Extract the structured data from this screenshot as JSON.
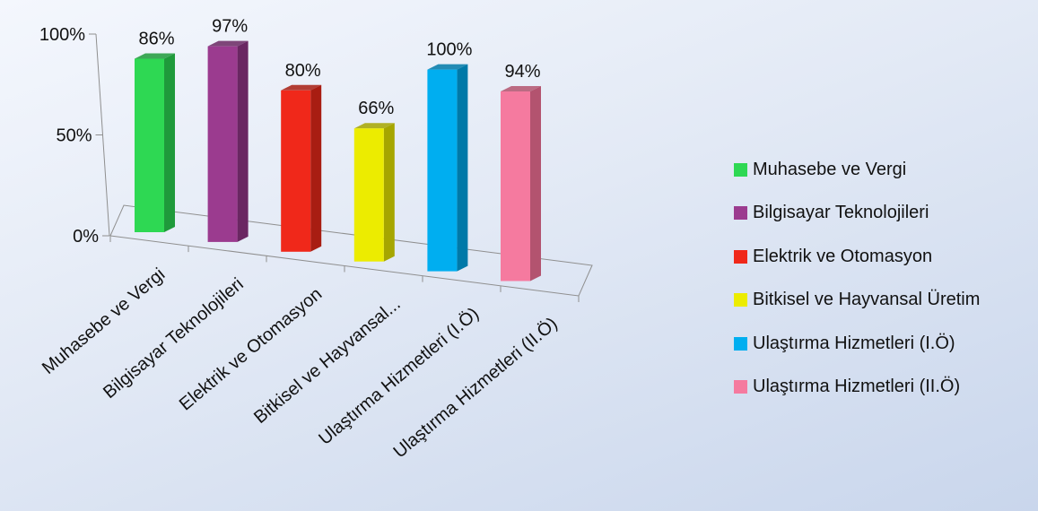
{
  "chart_data": {
    "type": "bar",
    "style": "3d-column",
    "categories": [
      "Muhasebe ve Vergi",
      "Bilgisayar Teknolojileri",
      "Elektrik ve Otomasyon",
      "Bitkisel ve Hayvansal Üretim",
      "Ulaştırma Hizmetleri (I.Ö)",
      "Ulaştırma Hizmetleri (II.Ö)"
    ],
    "axis_tick_labels": [
      "Muhasebe ve Vergi",
      "Bilgisayar Teknolojileri",
      "Elektrik ve Otomasyon",
      "Bitkisel ve Hayvansal...",
      "Ulaştırma Hizmetleri (I.Ö)",
      "Ulaştırma Hizmetleri (II.Ö)"
    ],
    "values": [
      86,
      97,
      80,
      66,
      100,
      94
    ],
    "data_labels": [
      "86%",
      "97%",
      "80%",
      "66%",
      "100%",
      "94%"
    ],
    "colors": [
      "#2ed853",
      "#9b3b8f",
      "#f0281a",
      "#ecec00",
      "#00aef0",
      "#f57a9f"
    ],
    "side_colors": [
      "#1f9a3b",
      "#6a2762",
      "#a81d12",
      "#a6a600",
      "#0079a8",
      "#b3536f"
    ],
    "ylim": [
      0,
      100
    ],
    "yticks": [
      "0%",
      "50%",
      "100%"
    ],
    "title": "",
    "xlabel": "",
    "ylabel": "",
    "grid": false,
    "legend_position": "right"
  }
}
